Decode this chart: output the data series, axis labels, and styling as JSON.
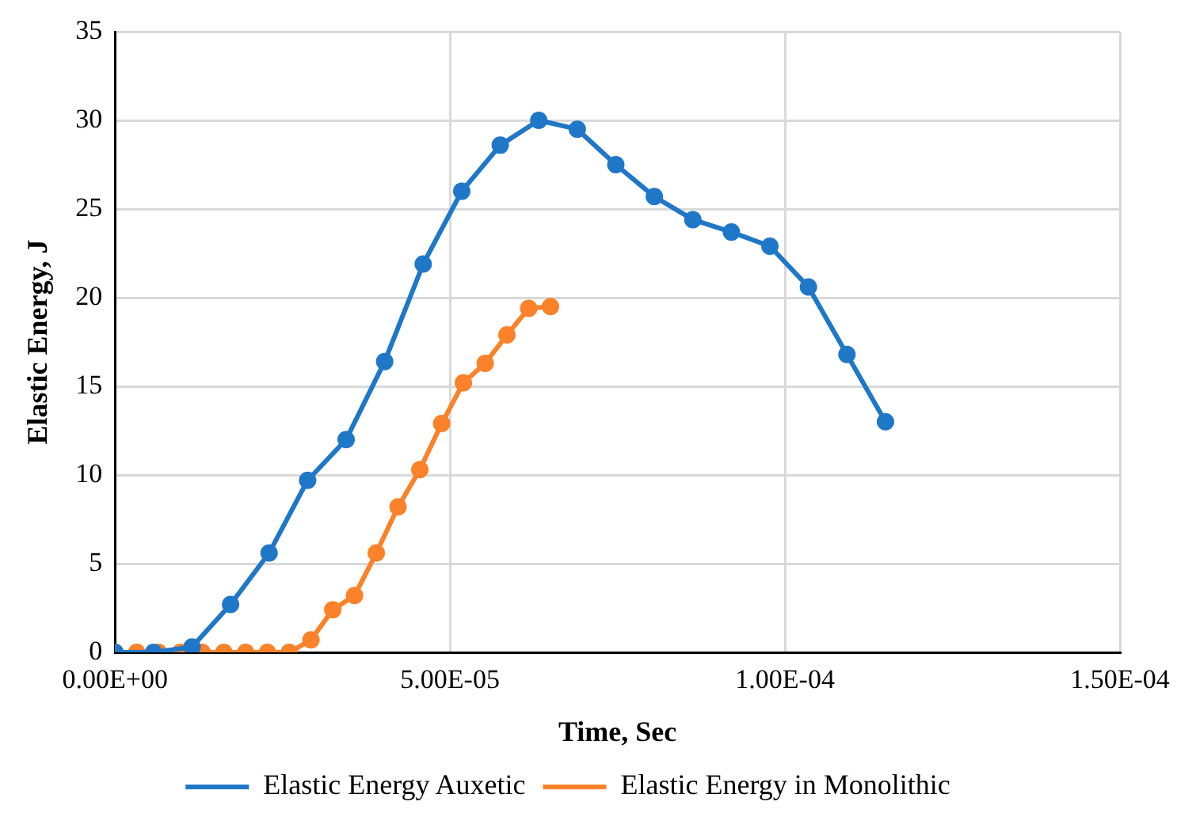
{
  "chart_data": {
    "type": "line",
    "xlabel": "Time, Sec",
    "ylabel": "Elastic Energy, J",
    "xlim": [
      0,
      0.00015
    ],
    "xticks": [
      {
        "value": 0,
        "label": "0.00E+00"
      },
      {
        "value": 5e-05,
        "label": "5.00E-05"
      },
      {
        "value": 0.0001,
        "label": "1.00E-04"
      },
      {
        "value": 0.00015,
        "label": "1.50E-04"
      }
    ],
    "ylim": [
      0,
      35
    ],
    "yticks": [
      0,
      5,
      10,
      15,
      20,
      25,
      30,
      35
    ],
    "grid": true,
    "legend": "bottom",
    "marker": "circle",
    "line_style": "solid",
    "series": [
      {
        "name": "Elastic Energy Auxetic",
        "color": "#1f77c8",
        "x": [
          0,
          5.75e-06,
          1.15e-05,
          1.725e-05,
          2.3e-05,
          2.875e-05,
          3.45e-05,
          4.025e-05,
          4.6e-05,
          5.175e-05,
          5.75e-05,
          6.325e-05,
          6.9e-05,
          7.475e-05,
          8.05e-05,
          8.625e-05,
          9.2e-05,
          9.775e-05,
          0.0001035,
          0.00010925,
          0.000115
        ],
        "values": [
          0,
          0,
          0.3,
          2.7,
          5.6,
          9.7,
          12,
          16.4,
          21.9,
          26,
          28.6,
          30,
          29.5,
          27.5,
          25.7,
          24.4,
          23.7,
          22.9,
          20.6,
          16.8,
          13
        ]
      },
      {
        "name": "Elastic Energy in Monolithic",
        "color": "#fb8228",
        "x": [
          0,
          3.25e-06,
          6.5e-06,
          9.75e-06,
          1.3e-05,
          1.625e-05,
          1.95e-05,
          2.275e-05,
          2.6e-05,
          2.925e-05,
          3.25e-05,
          3.575e-05,
          3.9e-05,
          4.225e-05,
          4.55e-05,
          4.875e-05,
          5.2e-05,
          5.525e-05,
          5.85e-05,
          6.175e-05,
          6.5e-05
        ],
        "values": [
          0,
          0,
          0,
          0,
          0,
          0,
          0,
          0,
          0,
          0.7,
          2.4,
          3.2,
          5.6,
          8.2,
          10.3,
          12.9,
          15.2,
          16.3,
          17.9,
          19.4,
          19.5
        ]
      }
    ]
  }
}
